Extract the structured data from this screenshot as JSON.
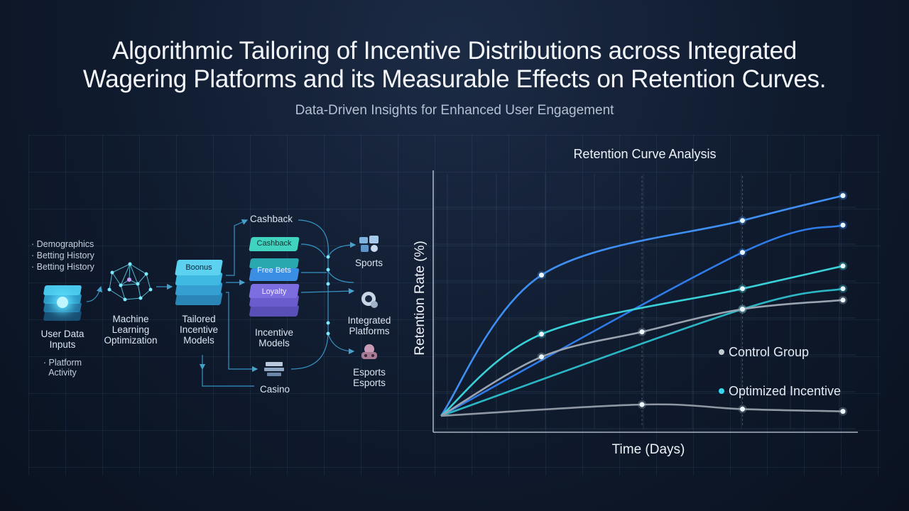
{
  "header": {
    "title_line1": "Algorithmic Tailoring of Incentive Distributions across Integrated",
    "title_line2": "Wagering Platforms and its Measurable Effects on Retention Curves.",
    "subtitle": "Data-Driven Insights for Enhanced User Engagement"
  },
  "diagram": {
    "inputs_list": [
      "· Demographics",
      "· Betting History",
      "· Betting History"
    ],
    "user_data_label": "User Data\nInputs",
    "platform_activity": "· Platform\nActivity",
    "ml_label": "Machine\nLearning\nOptimization",
    "bonus_chip": "Boonus",
    "tailored_label": "Tailored\nIncentive\nModels",
    "incentive_chips": [
      "Cashback",
      "Free Bets",
      "Loyalty"
    ],
    "incentive_label": "Incentive\nModels",
    "cashback_label": "Cashback",
    "casino_label": "Casino",
    "sports_label": "Sports",
    "integrated_label": "Integrated\nPlatforms",
    "esports_label": "Esports\nEsports",
    "colors": {
      "cyan": "#38d6f0",
      "blue": "#3f8ff2",
      "teal": "#35c9b8",
      "purple": "#7c6ee0"
    }
  },
  "chart_data": {
    "type": "line",
    "title": "Retention Curve Analysis",
    "xlabel": "Time (Days)",
    "ylabel": "Retention Rate (%)",
    "legend": [
      "Control Group",
      "Optimized Incentive"
    ],
    "legend_position": "right",
    "x": [
      0,
      1,
      2,
      3,
      4
    ],
    "ylim": [
      0,
      100
    ],
    "grid": true,
    "series": [
      {
        "color": "#3f8ff2",
        "values": [
          0,
          62,
          null,
          86,
          97
        ]
      },
      {
        "color": "#2f7be8",
        "values": [
          0,
          null,
          null,
          72,
          84
        ]
      },
      {
        "color": "#3ad0d8",
        "values": [
          0,
          36,
          null,
          56,
          66
        ]
      },
      {
        "color": "#2bb6c4",
        "values": [
          0,
          null,
          null,
          47,
          56
        ]
      },
      {
        "color": "#9aa3b0",
        "values": [
          0,
          26,
          37,
          47,
          51
        ]
      },
      {
        "color": "#8f97a3",
        "values": [
          0,
          null,
          5,
          3,
          2
        ]
      }
    ]
  }
}
